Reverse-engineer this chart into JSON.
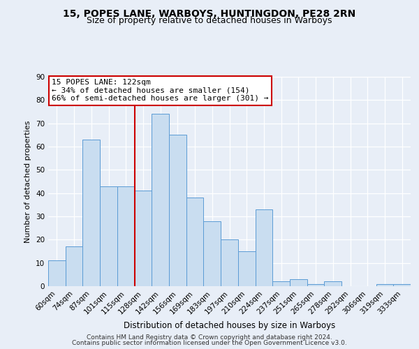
{
  "title1": "15, POPES LANE, WARBOYS, HUNTINGDON, PE28 2RN",
  "title2": "Size of property relative to detached houses in Warboys",
  "xlabel": "Distribution of detached houses by size in Warboys",
  "ylabel": "Number of detached properties",
  "categories": [
    "60sqm",
    "74sqm",
    "87sqm",
    "101sqm",
    "115sqm",
    "128sqm",
    "142sqm",
    "156sqm",
    "169sqm",
    "183sqm",
    "197sqm",
    "210sqm",
    "224sqm",
    "237sqm",
    "251sqm",
    "265sqm",
    "278sqm",
    "292sqm",
    "306sqm",
    "319sqm",
    "333sqm"
  ],
  "bar_heights": [
    11,
    17,
    63,
    43,
    43,
    41,
    74,
    65,
    38,
    28,
    20,
    15,
    33,
    2,
    3,
    1,
    2,
    0,
    0,
    1,
    1
  ],
  "bar_color": "#c9ddf0",
  "bar_edge_color": "#5b9bd5",
  "vline_color": "#cc0000",
  "vline_bar_index": 5,
  "ylim": [
    0,
    90
  ],
  "yticks": [
    0,
    10,
    20,
    30,
    40,
    50,
    60,
    70,
    80,
    90
  ],
  "annotation_text": "15 POPES LANE: 122sqm\n← 34% of detached houses are smaller (154)\n66% of semi-detached houses are larger (301) →",
  "annotation_box_facecolor": "#ffffff",
  "annotation_box_edgecolor": "#cc0000",
  "footer_line1": "Contains HM Land Registry data © Crown copyright and database right 2024.",
  "footer_line2": "Contains public sector information licensed under the Open Government Licence v3.0.",
  "background_color": "#e8eef7",
  "grid_color": "#ffffff",
  "title1_fontsize": 10,
  "title2_fontsize": 9,
  "xlabel_fontsize": 8.5,
  "ylabel_fontsize": 8,
  "tick_fontsize": 7.5,
  "annotation_fontsize": 8,
  "footer_fontsize": 6.5
}
